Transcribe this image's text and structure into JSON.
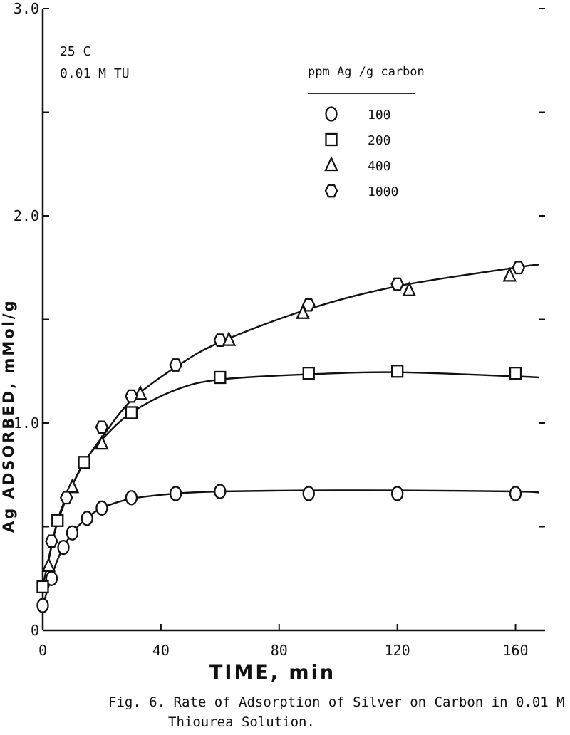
{
  "chart_data": {
    "type": "scatter",
    "title": "",
    "xlabel": "TIME, min",
    "ylabel": "Ag ADSORBED, mMol/g",
    "xlim": [
      0,
      170
    ],
    "ylim": [
      0,
      3.0
    ],
    "x_ticks": [
      0,
      40,
      80,
      120,
      160
    ],
    "y_ticks": [
      0,
      0.5,
      1.0,
      1.5,
      2.0,
      2.5,
      3.0
    ],
    "y_tick_labels": [
      "0",
      "",
      "1.0",
      "",
      "2.0",
      "",
      "3.0"
    ],
    "grid": false,
    "legend_title": "ppm Ag /g carbon",
    "legend_position": "top-right",
    "annotations": [
      "25 C",
      "0.01 M TU"
    ],
    "caption_lines": [
      "Fig. 6.  Rate of Adsorption of Silver on Carbon in 0.01 M",
      "Thiourea Solution."
    ],
    "series": [
      {
        "name": "100",
        "marker": "circle",
        "points": [
          [
            0,
            0.12
          ],
          [
            3,
            0.25
          ],
          [
            7,
            0.4
          ],
          [
            10,
            0.47
          ],
          [
            15,
            0.54
          ],
          [
            20,
            0.59
          ],
          [
            30,
            0.64
          ],
          [
            45,
            0.66
          ],
          [
            60,
            0.67
          ],
          [
            90,
            0.66
          ],
          [
            120,
            0.66
          ],
          [
            160,
            0.66
          ]
        ],
        "curve": [
          [
            0,
            0.12
          ],
          [
            5,
            0.34
          ],
          [
            10,
            0.47
          ],
          [
            15,
            0.54
          ],
          [
            20,
            0.59
          ],
          [
            30,
            0.635
          ],
          [
            45,
            0.66
          ],
          [
            60,
            0.67
          ],
          [
            90,
            0.675
          ],
          [
            120,
            0.675
          ],
          [
            160,
            0.67
          ],
          [
            168,
            0.665
          ]
        ]
      },
      {
        "name": "200",
        "marker": "square",
        "points": [
          [
            0,
            0.21
          ],
          [
            5,
            0.53
          ],
          [
            14,
            0.81
          ],
          [
            30,
            1.05
          ],
          [
            60,
            1.22
          ],
          [
            90,
            1.24
          ],
          [
            120,
            1.25
          ],
          [
            160,
            1.24
          ]
        ],
        "curve": [
          [
            0,
            0.21
          ],
          [
            5,
            0.53
          ],
          [
            10,
            0.7
          ],
          [
            14,
            0.81
          ],
          [
            20,
            0.92
          ],
          [
            30,
            1.05
          ],
          [
            45,
            1.16
          ],
          [
            60,
            1.21
          ],
          [
            90,
            1.235
          ],
          [
            120,
            1.245
          ],
          [
            160,
            1.225
          ],
          [
            168,
            1.22
          ]
        ]
      },
      {
        "name": "400",
        "marker": "triangle",
        "points": [
          [
            2,
            0.31
          ],
          [
            10,
            0.69
          ],
          [
            20,
            0.9
          ],
          [
            33,
            1.14
          ],
          [
            63,
            1.4
          ],
          [
            88,
            1.53
          ],
          [
            124,
            1.64
          ],
          [
            158,
            1.71
          ]
        ],
        "curve": []
      },
      {
        "name": "1000",
        "marker": "hexagon",
        "points": [
          [
            3,
            0.43
          ],
          [
            8,
            0.64
          ],
          [
            20,
            0.98
          ],
          [
            30,
            1.13
          ],
          [
            45,
            1.28
          ],
          [
            60,
            1.4
          ],
          [
            90,
            1.57
          ],
          [
            120,
            1.67
          ],
          [
            161,
            1.75
          ]
        ],
        "curve": [
          [
            2,
            0.34
          ],
          [
            5,
            0.52
          ],
          [
            10,
            0.7
          ],
          [
            15,
            0.83
          ],
          [
            20,
            0.93
          ],
          [
            30,
            1.11
          ],
          [
            45,
            1.27
          ],
          [
            60,
            1.39
          ],
          [
            90,
            1.55
          ],
          [
            120,
            1.66
          ],
          [
            160,
            1.75
          ],
          [
            168,
            1.765
          ]
        ]
      }
    ]
  }
}
